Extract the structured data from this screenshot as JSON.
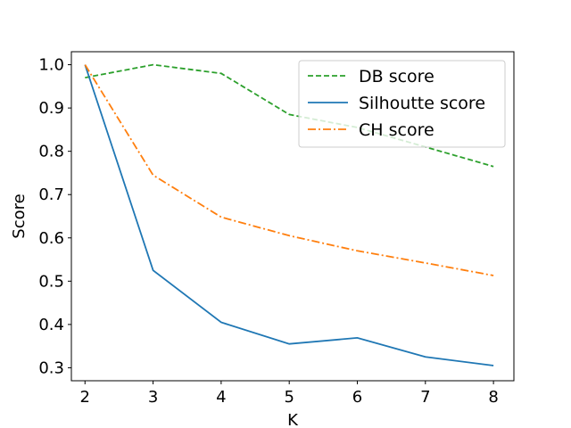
{
  "chart_data": {
    "type": "line",
    "title": "",
    "xlabel": "K",
    "ylabel": "Score",
    "x": [
      2,
      3,
      4,
      5,
      6,
      7,
      8
    ],
    "xlim": [
      1.8,
      8.3
    ],
    "ylim": [
      0.27,
      1.03
    ],
    "xticks": [
      2,
      3,
      4,
      5,
      6,
      7,
      8
    ],
    "yticks": [
      0.3,
      0.4,
      0.5,
      0.6,
      0.7,
      0.8,
      0.9,
      1.0
    ],
    "ytick_labels": [
      "0.3",
      "0.4",
      "0.5",
      "0.6",
      "0.7",
      "0.8",
      "0.9",
      "1.0"
    ],
    "grid": false,
    "legend_position": "top-right",
    "series": [
      {
        "name": "DB score",
        "color": "#2ca02c",
        "dash": "dashed",
        "values": [
          0.97,
          1.0,
          0.98,
          0.885,
          0.855,
          0.81,
          0.765
        ]
      },
      {
        "name": "Silhoutte score",
        "color": "#1f77b4",
        "dash": "solid",
        "values": [
          1.0,
          0.525,
          0.405,
          0.355,
          0.369,
          0.325,
          0.305
        ]
      },
      {
        "name": "CH score",
        "color": "#ff7f0e",
        "dash": "dashdot",
        "values": [
          1.0,
          0.745,
          0.648,
          0.605,
          0.57,
          0.542,
          0.513
        ]
      }
    ]
  }
}
